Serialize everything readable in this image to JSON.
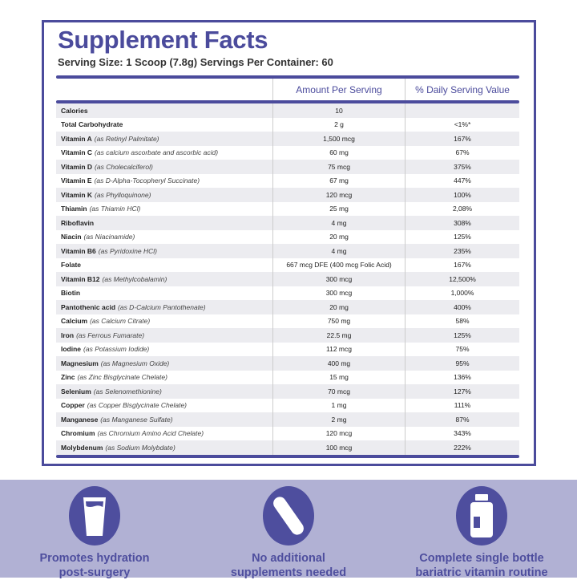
{
  "title": "Supplement Facts",
  "serving": "Serving Size: 1 Scoop (7.8g) Servings Per Container: 60",
  "headers": {
    "amount": "Amount Per Serving",
    "dv": "% Daily Serving Value"
  },
  "rows": [
    {
      "name": "Calories",
      "source": "",
      "amount": "10",
      "dv": ""
    },
    {
      "name": "Total Carbohydrate",
      "source": "",
      "amount": "2 g",
      "dv": "<1%*"
    },
    {
      "name": "Vitamin A",
      "source": "(as Retinyl Palmitate)",
      "amount": "1,500 mcg",
      "dv": "167%"
    },
    {
      "name": "Vitamin C",
      "source": "(as calcium ascorbate and ascorbic acid)",
      "amount": "60 mg",
      "dv": "67%"
    },
    {
      "name": "Vitamin D",
      "source": "(as Cholecalciferol)",
      "amount": "75 mcg",
      "dv": "375%"
    },
    {
      "name": "Vitamin E",
      "source": "(as D-Alpha-Tocopheryl Succinate)",
      "amount": "67 mg",
      "dv": "447%"
    },
    {
      "name": "Vitamin K",
      "source": "(as Phylloquinone)",
      "amount": "120 mcg",
      "dv": "100%"
    },
    {
      "name": "Thiamin",
      "source": "(as Thiamin HCl)",
      "amount": "25 mg",
      "dv": "2,08%"
    },
    {
      "name": "Riboflavin",
      "source": "",
      "amount": "4 mg",
      "dv": "308%"
    },
    {
      "name": "Niacin",
      "source": "(as Niacinamide)",
      "amount": "20 mg",
      "dv": "125%"
    },
    {
      "name": "Vitamin B6",
      "source": "(as Pyridoxine HCl)",
      "amount": "4 mg",
      "dv": "235%"
    },
    {
      "name": "Folate",
      "source": "",
      "amount": "667 mcg DFE (400 mcg Folic Acid)",
      "dv": "167%"
    },
    {
      "name": "Vitamin B12",
      "source": "(as Methylcobalamin)",
      "amount": "300 mcg",
      "dv": "12,500%"
    },
    {
      "name": "Biotin",
      "source": "",
      "amount": "300 mcg",
      "dv": "1,000%"
    },
    {
      "name": "Pantothenic acid",
      "source": "(as D-Calcium Pantothenate)",
      "amount": "20 mg",
      "dv": "400%"
    },
    {
      "name": "Calcium",
      "source": "(as Calcium Citrate)",
      "amount": "750 mg",
      "dv": "58%"
    },
    {
      "name": "Iron",
      "source": "(as Ferrous Fumarate)",
      "amount": "22.5 mg",
      "dv": "125%"
    },
    {
      "name": "Iodine",
      "source": "(as Potassium Iodide)",
      "amount": "112 mcg",
      "dv": "75%"
    },
    {
      "name": "Magnesium",
      "source": "(as Magnesium Oxide)",
      "amount": "400 mg",
      "dv": "95%"
    },
    {
      "name": "Zinc",
      "source": "(as Zinc Bisglycinate Chelate)",
      "amount": "15 mg",
      "dv": "136%"
    },
    {
      "name": "Selenium",
      "source": "(as Selenomethionine)",
      "amount": "70 mcg",
      "dv": "127%"
    },
    {
      "name": "Copper",
      "source": "(as Copper Bisglycinate Chelate)",
      "amount": "1 mg",
      "dv": "111%"
    },
    {
      "name": "Manganese",
      "source": "(as Manganese Sulfate)",
      "amount": "2 mg",
      "dv": "87%"
    },
    {
      "name": "Chromium",
      "source": "(as Chromium Amino Acid Chelate)",
      "amount": "120 mcg",
      "dv": "343%"
    },
    {
      "name": "Molybdenum",
      "source": "(as Sodium Molybdate)",
      "amount": "100 mcg",
      "dv": "222%"
    }
  ],
  "features": [
    {
      "icon": "water-glass-icon",
      "line1": "Promotes hydration",
      "line2": "post-surgery"
    },
    {
      "icon": "capsule-icon",
      "line1": "No additional",
      "line2": "supplements needed"
    },
    {
      "icon": "bottle-icon",
      "line1": "Complete single bottle",
      "line2": "bariatric vitamin routine"
    }
  ],
  "colors": {
    "accent": "#4b4b9c",
    "band": "#b1b1d4"
  }
}
